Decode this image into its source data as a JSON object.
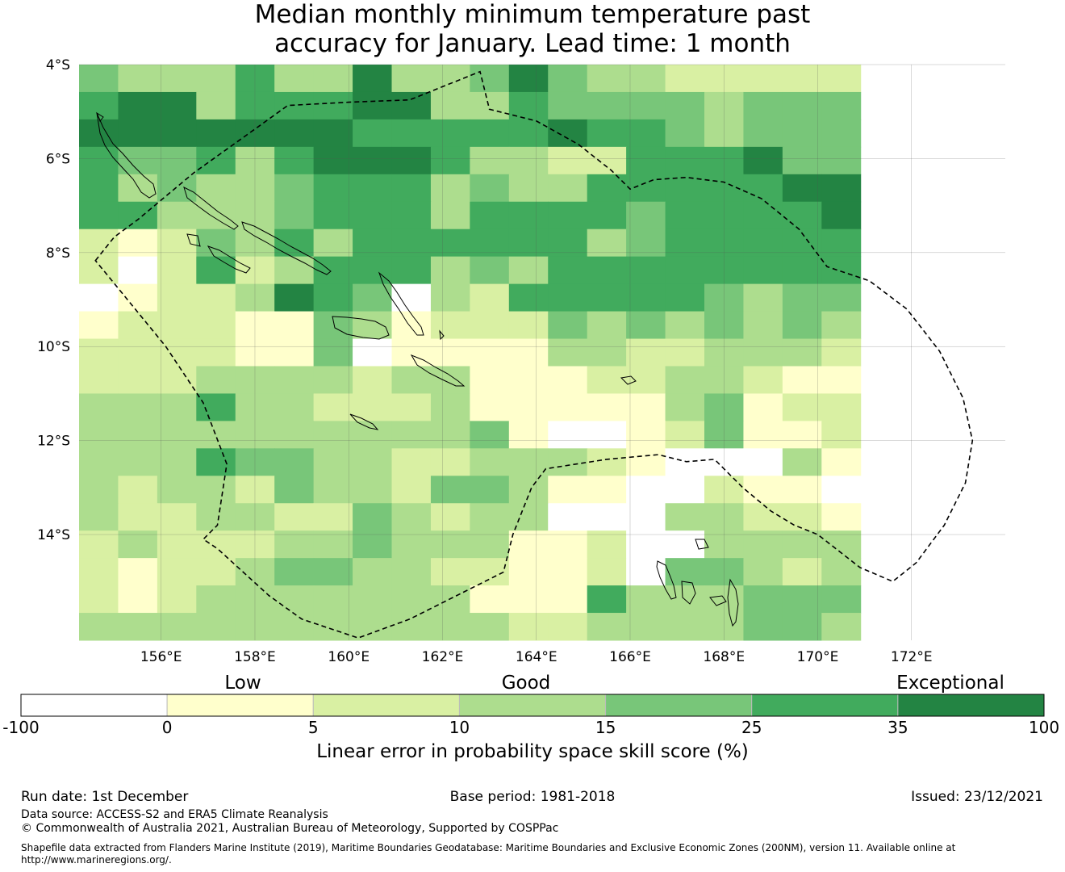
{
  "title_line1": "Median monthly minimum temperature past",
  "title_line2": "accuracy for January. Lead time: 1 month",
  "map": {
    "lon_range": [
      154.25,
      174.0
    ],
    "lat_range": [
      -4.0,
      -16.25
    ],
    "cell_size_deg": 0.8333,
    "lat_ticks": [
      {
        "value": -4,
        "label": "4°S"
      },
      {
        "value": -6,
        "label": "6°S"
      },
      {
        "value": -8,
        "label": "8°S"
      },
      {
        "value": -10,
        "label": "10°S"
      },
      {
        "value": -12,
        "label": "12°S"
      },
      {
        "value": -14,
        "label": "14°S"
      }
    ],
    "lon_ticks": [
      {
        "value": 156,
        "label": "156°E"
      },
      {
        "value": 158,
        "label": "158°E"
      },
      {
        "value": 160,
        "label": "160°E"
      },
      {
        "value": 162,
        "label": "162°E"
      },
      {
        "value": 164,
        "label": "164°E"
      },
      {
        "value": 166,
        "label": "166°E"
      },
      {
        "value": 168,
        "label": "168°E"
      },
      {
        "value": 170,
        "label": "170°E"
      },
      {
        "value": 172,
        "label": "172°E"
      }
    ],
    "grid_classes": [
      "43335336334643322222",
      "56635556633544443444",
      "66666665555565543444",
      "54453566653322555644",
      "53433455534335555566",
      "55333455535555455556",
      "21243535555553455555",
      "20252355534355555555",
      "01223654032555554344",
      "12221143122243434343",
      "22221140111133223332",
      "22233332331112233211",
      "33353322231111134122",
      "33333333334100124112",
      "33354433223332100031",
      "32332433244311002110",
      "32233224323300033221",
      "23222334333112003333",
      "21223443322112044323",
      "21233333331115333444",
      "33333333333223333443"
    ],
    "eez_boundary": [
      [
        154.6,
        -8.17
      ],
      [
        155.0,
        -7.67
      ],
      [
        155.5,
        -7.3
      ],
      [
        156.1,
        -6.8
      ],
      [
        156.7,
        -6.3
      ],
      [
        157.4,
        -5.8
      ],
      [
        158.1,
        -5.3
      ],
      [
        158.7,
        -4.87
      ],
      [
        160.0,
        -4.8
      ],
      [
        161.3,
        -4.75
      ],
      [
        162.8,
        -4.15
      ],
      [
        163.0,
        -4.95
      ],
      [
        164.0,
        -5.2
      ],
      [
        164.9,
        -5.7
      ],
      [
        165.6,
        -6.25
      ],
      [
        166.0,
        -6.65
      ],
      [
        166.5,
        -6.45
      ],
      [
        167.2,
        -6.4
      ],
      [
        168.0,
        -6.5
      ],
      [
        168.8,
        -6.85
      ],
      [
        169.6,
        -7.5
      ],
      [
        170.2,
        -8.3
      ],
      [
        171.1,
        -8.6
      ],
      [
        171.9,
        -9.2
      ],
      [
        172.6,
        -10.1
      ],
      [
        173.1,
        -11.1
      ],
      [
        173.3,
        -12.0
      ],
      [
        173.15,
        -12.9
      ],
      [
        172.7,
        -13.8
      ],
      [
        172.1,
        -14.6
      ],
      [
        171.6,
        -15.0
      ],
      [
        170.9,
        -14.7
      ],
      [
        170.0,
        -14.0
      ],
      [
        169.5,
        -13.8
      ],
      [
        169.0,
        -13.5
      ],
      [
        168.4,
        -13.0
      ],
      [
        167.8,
        -12.4
      ],
      [
        167.2,
        -12.45
      ],
      [
        166.6,
        -12.3
      ],
      [
        165.5,
        -12.4
      ],
      [
        164.2,
        -12.6
      ],
      [
        163.9,
        -13.0
      ],
      [
        163.5,
        -14.0
      ],
      [
        163.3,
        -14.8
      ],
      [
        162.5,
        -15.2
      ],
      [
        161.3,
        -15.8
      ],
      [
        160.2,
        -16.2
      ],
      [
        159.0,
        -15.8
      ],
      [
        158.3,
        -15.3
      ],
      [
        157.2,
        -14.3
      ],
      [
        156.9,
        -14.1
      ],
      [
        157.2,
        -13.8
      ],
      [
        157.4,
        -12.5
      ],
      [
        156.9,
        -11.2
      ],
      [
        156.1,
        -10.0
      ],
      [
        155.2,
        -8.9
      ],
      [
        154.6,
        -8.17
      ]
    ]
  },
  "colorbar": {
    "qual_labels": [
      "Low",
      "Good",
      "Exceptional"
    ],
    "tick_labels": [
      "-100",
      "0",
      "5",
      "10",
      "15",
      "25",
      "35",
      "100"
    ],
    "colors": [
      "#ffffff",
      "#ffffcc",
      "#d9f0a3",
      "#addd8e",
      "#78c679",
      "#41ab5d",
      "#238443"
    ],
    "label": "Linear error in probability space skill score (%)"
  },
  "footer": {
    "run_date": "Run date: 1st December",
    "base_period": "Base period: 1981-2018",
    "issued": "Issued: 23/12/2021",
    "data_source": "Data source: ACCESS-S2 and ERA5 Climate Reanalysis",
    "copyright": "© Commonwealth of Australia 2021, Australian Bureau of Meteorology, Supported by COSPPac",
    "shapefile_line1": "Shapefile data extracted from Flanders Marine Institute (2019), Maritime Boundaries Geodatabase: Maritime Boundaries and Exclusive Economic Zones (200NM), version 11. Available online at",
    "shapefile_line2": "http://www.marineregions.org/."
  }
}
